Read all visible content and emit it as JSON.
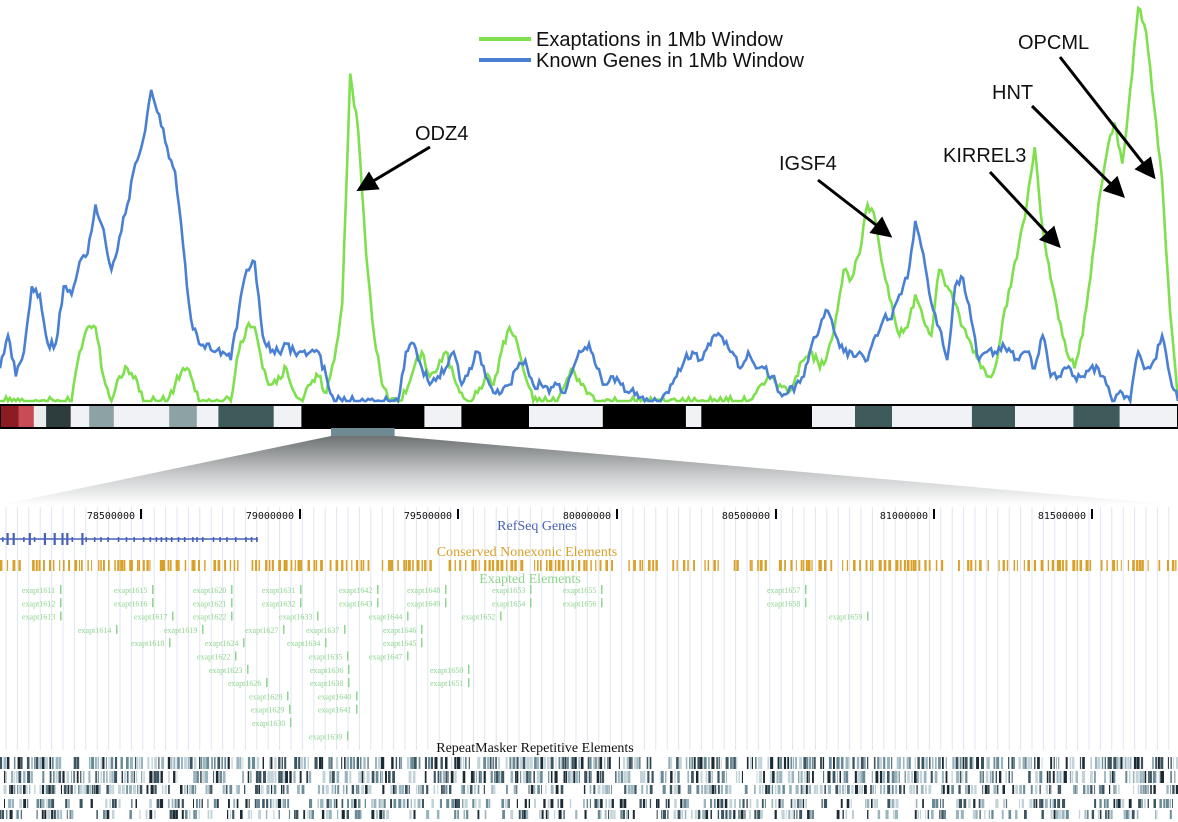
{
  "legend": {
    "exaptations_label": "Exaptations in 1Mb Window",
    "genes_label": "Known Genes in 1Mb Window",
    "exaptations_color": "#7ee04d",
    "genes_color": "#4a80d4"
  },
  "annotations": [
    {
      "label": "ODZ4",
      "target_index": 44
    },
    {
      "label": "IGSF4",
      "target_index": 111
    },
    {
      "label": "KIRREL3",
      "target_index": 131
    },
    {
      "label": "HNT",
      "target_index": 139
    },
    {
      "label": "OPCML",
      "target_index": 143
    }
  ],
  "chart_data": {
    "type": "line",
    "xlabel": "",
    "ylabel": "",
    "grid": false,
    "legend_position": "top-center",
    "series": [
      {
        "name": "Exaptations in 1Mb Window",
        "color": "#7ee04d",
        "values": [
          0,
          0,
          0,
          0,
          0,
          0,
          0,
          0,
          0,
          0,
          6,
          9,
          9,
          3,
          0,
          3,
          4,
          3,
          0,
          0,
          0,
          0,
          2,
          4,
          3,
          0,
          0,
          0,
          0,
          0,
          6,
          9,
          9,
          4,
          2,
          3,
          4,
          1,
          0,
          2,
          3,
          1,
          5,
          12,
          40,
          33,
          18,
          8,
          2,
          0,
          0,
          1,
          4,
          6,
          3,
          4,
          6,
          3,
          1,
          0,
          1,
          3,
          2,
          6,
          9,
          7,
          3,
          0,
          0,
          0,
          0,
          2,
          4,
          2,
          1,
          0,
          0,
          0,
          0,
          0,
          0,
          0,
          0,
          0,
          0,
          0,
          0,
          0,
          0,
          0,
          0,
          0,
          0,
          0,
          0,
          1,
          2,
          3,
          2,
          1,
          3,
          5,
          6,
          4,
          6,
          10,
          16,
          15,
          18,
          24,
          22,
          16,
          12,
          8,
          9,
          13,
          10,
          8,
          16,
          14,
          12,
          9,
          7,
          5,
          3,
          4,
          10,
          14,
          19,
          24,
          31,
          21,
          15,
          10,
          6,
          4,
          8,
          15,
          24,
          30,
          34,
          29,
          38,
          48,
          45,
          36,
          27,
          11,
          0
        ]
      },
      {
        "name": "Known Genes in 1Mb Window",
        "color": "#4a80d4",
        "values": [
          4,
          8,
          3,
          6,
          14,
          13,
          7,
          7,
          14,
          13,
          17,
          18,
          24,
          21,
          16,
          20,
          24,
          29,
          32,
          38,
          35,
          31,
          28,
          19,
          10,
          7,
          7,
          6,
          6,
          5,
          11,
          16,
          17,
          8,
          6,
          6,
          7,
          6,
          6,
          6,
          6,
          3,
          0,
          0,
          0,
          0,
          0,
          0,
          0,
          0,
          0,
          6,
          7,
          4,
          2,
          3,
          4,
          6,
          2,
          4,
          6,
          3,
          1,
          1,
          2,
          4,
          5,
          2,
          2,
          1,
          2,
          1,
          4,
          6,
          7,
          4,
          2,
          3,
          2,
          1,
          1,
          0,
          0,
          0,
          1,
          3,
          5,
          6,
          5,
          7,
          8,
          7,
          6,
          4,
          6,
          4,
          4,
          3,
          1,
          1,
          2,
          3,
          7,
          9,
          11,
          8,
          6,
          6,
          6,
          5,
          8,
          10,
          10,
          13,
          15,
          22,
          18,
          12,
          9,
          5,
          14,
          15,
          10,
          5,
          6,
          6,
          7,
          6,
          5,
          6,
          4,
          8,
          3,
          3,
          4,
          3,
          3,
          4,
          4,
          2,
          0,
          1,
          0,
          6,
          4,
          5,
          8,
          3,
          0
        ]
      }
    ]
  },
  "chromosome_bands": [
    {
      "w": 6,
      "c": "#8b1c24"
    },
    {
      "w": 5,
      "c": "#c84b55"
    },
    {
      "w": 4,
      "c": "#ececec"
    },
    {
      "w": 8,
      "c": "#2d3c3c"
    },
    {
      "w": 6,
      "c": "#f0f2f5"
    },
    {
      "w": 8,
      "c": "#8da2a4"
    },
    {
      "w": 18,
      "c": "#f0f2f5"
    },
    {
      "w": 9,
      "c": "#8da2a4"
    },
    {
      "w": 7,
      "c": "#f0f2f5"
    },
    {
      "w": 18,
      "c": "#3f5a5a"
    },
    {
      "w": 9,
      "c": "#f0f2f5"
    },
    {
      "w": 40,
      "c": "#000000"
    },
    {
      "w": 12,
      "c": "#f0f2f5"
    },
    {
      "w": 22,
      "c": "#000000"
    },
    {
      "w": 24,
      "c": "#f0f2f5"
    },
    {
      "w": 27,
      "c": "#000000"
    },
    {
      "w": 5,
      "c": "#f0f2f5"
    },
    {
      "w": 36,
      "c": "#000000"
    },
    {
      "w": 14,
      "c": "#f0f2f5"
    },
    {
      "w": 12,
      "c": "#3f5a5a"
    },
    {
      "w": 26,
      "c": "#f0f2f5"
    },
    {
      "w": 14,
      "c": "#3f5a5a"
    },
    {
      "w": 19,
      "c": "#f0f2f5"
    },
    {
      "w": 15,
      "c": "#3f5a5a"
    },
    {
      "w": 19,
      "c": "#f0f2f5"
    }
  ],
  "zoom_band": {
    "start_frac": 0.281,
    "end_frac": 0.335,
    "color": "#6f8a92"
  },
  "browser": {
    "tick_labels": [
      "78500000",
      "79000000",
      "79500000",
      "80000000",
      "80500000",
      "81000000",
      "81500000"
    ],
    "refseq_title": "RefSeq Genes",
    "refseq_color": "#4860b8",
    "conserved_title": "Conserved Nonexonic Elements",
    "conserved_color": "#d9a02a",
    "exapted_title": "Exapted Elements",
    "exapted_color": "#8fd58f",
    "repeat_title": "RepeatMasker Repetitive Elements",
    "repeat_color": "#111111",
    "exapted_rows": [
      [
        "exapt1611",
        "exapt1615",
        "exapt1620",
        "exapt1631",
        "exapt1642",
        "exapt1648",
        "exapt1653",
        "exapt1655",
        "exapt1657"
      ],
      [
        "exapt1612",
        "exapt1616",
        "exapt1621",
        "exapt1632",
        "exapt1643",
        "exapt1649",
        "exapt1654",
        "exapt1656",
        "exapt1658"
      ],
      [
        "exapt1613",
        "exapt1617",
        "exapt1622",
        "exapt1633",
        "exapt1644",
        "exapt1652",
        "exapt1659"
      ],
      [
        "exapt1614",
        "exapt1619",
        "exapt1627",
        "exapt1637",
        "exapt1646"
      ],
      [
        "exapt1618",
        "exapt1624",
        "exapt1634",
        "exapt1645"
      ],
      [
        "exapt1622",
        "exapt1635",
        "exapt1647"
      ],
      [
        "exapt1623",
        "exapt1636",
        "exapt1650"
      ],
      [
        "exapt1626",
        "exapt1638",
        "exapt1651"
      ],
      [
        "exapt1628",
        "exapt1640"
      ],
      [
        "exapt1629",
        "exapt1641"
      ],
      [
        "exapt1630"
      ],
      [
        "exapt1639"
      ]
    ]
  }
}
